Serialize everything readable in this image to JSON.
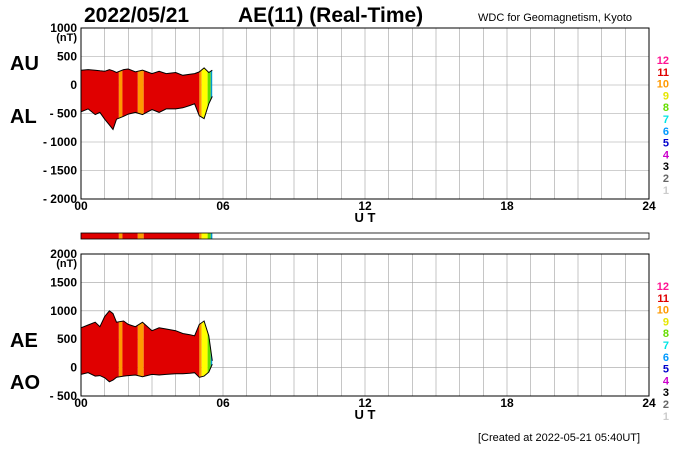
{
  "header": {
    "date": "2022/05/21",
    "title": "AE(11) (Real-Time)",
    "source": "WDC for Geomagnetism, Kyoto",
    "created": "[Created at 2022-05-21 05:40UT]"
  },
  "legend": {
    "numbers": [
      "12",
      "11",
      "10",
      "9",
      "8",
      "7",
      "6",
      "5",
      "4",
      "3",
      "2",
      "1"
    ],
    "colors": [
      "#ff1493",
      "#e00000",
      "#ff9900",
      "#e6e600",
      "#66dd00",
      "#00e5e5",
      "#0099ff",
      "#0000cc",
      "#cc00cc",
      "#000000",
      "#666666",
      "#cccccc"
    ]
  },
  "chart_data": [
    {
      "type": "area",
      "name": "AU-AL",
      "labels": {
        "upper": "AU",
        "lower": "AL"
      },
      "unit_label": "(nT)",
      "xlabel": "U T",
      "xlim": [
        0,
        24
      ],
      "x_ticks": [
        "00",
        "06",
        "12",
        "18",
        "24"
      ],
      "ylim": [
        -2000,
        1000
      ],
      "y_ticks": [
        "1000",
        "500",
        "0",
        "- 500",
        "- 1000",
        "- 1500",
        "- 2000"
      ],
      "grid": true,
      "x": [
        0.0,
        0.3,
        0.6,
        0.8,
        1.0,
        1.2,
        1.35,
        1.5,
        1.8,
        2.0,
        2.3,
        2.6,
        3.0,
        3.3,
        3.6,
        4.0,
        4.3,
        4.6,
        4.8,
        5.0,
        5.2,
        5.4,
        5.55
      ],
      "upper": [
        260,
        270,
        260,
        250,
        240,
        270,
        250,
        220,
        270,
        280,
        230,
        260,
        200,
        240,
        200,
        220,
        170,
        190,
        200,
        230,
        300,
        220,
        260
      ],
      "lower": [
        -470,
        -420,
        -520,
        -480,
        -600,
        -700,
        -780,
        -600,
        -550,
        -510,
        -480,
        -520,
        -430,
        -480,
        -420,
        -420,
        -400,
        -360,
        -330,
        -540,
        -590,
        -330,
        -200
      ],
      "color_bands": [
        {
          "from": 0.0,
          "to": 1.6,
          "color": "#e00000"
        },
        {
          "from": 1.6,
          "to": 1.75,
          "color": "#ff9900"
        },
        {
          "from": 1.75,
          "to": 2.4,
          "color": "#e00000"
        },
        {
          "from": 2.4,
          "to": 2.65,
          "color": "#ff9900"
        },
        {
          "from": 2.65,
          "to": 5.0,
          "color": "#e00000"
        },
        {
          "from": 5.0,
          "to": 5.1,
          "color": "#ff9900"
        },
        {
          "from": 5.1,
          "to": 5.35,
          "color": "#ffff00"
        },
        {
          "from": 5.35,
          "to": 5.48,
          "color": "#66dd00"
        },
        {
          "from": 5.48,
          "to": 5.55,
          "color": "#0099cc"
        }
      ]
    },
    {
      "type": "area",
      "name": "AE-AO",
      "labels": {
        "upper": "AE",
        "lower": "AO"
      },
      "unit_label": "(nT)",
      "xlabel": "U T",
      "xlim": [
        0,
        24
      ],
      "x_ticks": [
        "00",
        "06",
        "12",
        "18",
        "24"
      ],
      "ylim": [
        -500,
        2000
      ],
      "y_ticks": [
        "2000",
        "1500",
        "1000",
        "500",
        "0",
        "- 500"
      ],
      "grid": true,
      "x": [
        0.0,
        0.3,
        0.6,
        0.8,
        1.0,
        1.2,
        1.35,
        1.5,
        1.8,
        2.0,
        2.3,
        2.6,
        3.0,
        3.3,
        3.6,
        4.0,
        4.3,
        4.6,
        4.8,
        5.0,
        5.2,
        5.4,
        5.55
      ],
      "upper": [
        700,
        750,
        800,
        720,
        900,
        1000,
        950,
        800,
        820,
        760,
        720,
        800,
        650,
        700,
        680,
        650,
        600,
        580,
        560,
        760,
        820,
        560,
        120
      ],
      "lower": [
        -120,
        -90,
        -150,
        -140,
        -180,
        -250,
        -220,
        -170,
        -150,
        -140,
        -130,
        -160,
        -120,
        -130,
        -120,
        -110,
        -110,
        -100,
        -90,
        -170,
        -150,
        -80,
        60
      ],
      "color_bands": [
        {
          "from": 0.0,
          "to": 1.6,
          "color": "#e00000"
        },
        {
          "from": 1.6,
          "to": 1.75,
          "color": "#ff9900"
        },
        {
          "from": 1.75,
          "to": 2.4,
          "color": "#e00000"
        },
        {
          "from": 2.4,
          "to": 2.65,
          "color": "#ff9900"
        },
        {
          "from": 2.65,
          "to": 5.0,
          "color": "#e00000"
        },
        {
          "from": 5.0,
          "to": 5.1,
          "color": "#ff9900"
        },
        {
          "from": 5.1,
          "to": 5.35,
          "color": "#ffff00"
        },
        {
          "from": 5.35,
          "to": 5.48,
          "color": "#66dd00"
        },
        {
          "from": 5.48,
          "to": 5.55,
          "color": "#0099cc"
        }
      ]
    }
  ]
}
